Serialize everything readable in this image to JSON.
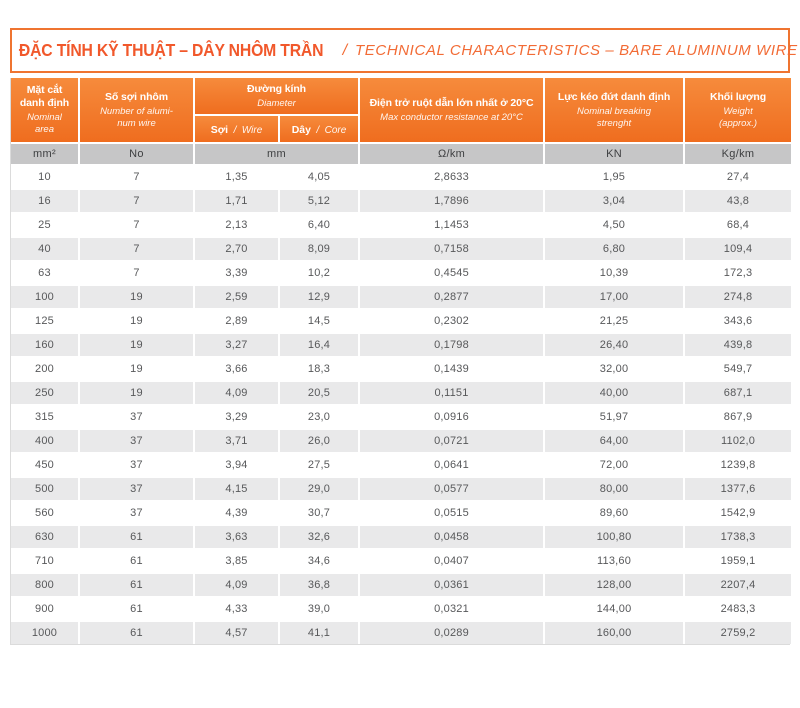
{
  "title": {
    "vi": "ĐẶC TÍNH KỸ THUẬT – DÂY NHÔM TRẦN",
    "separator": "/",
    "en": "TECHNICAL CHARACTERISTICS – BARE ALUMINUM WIRE"
  },
  "colors": {
    "accent_orange": "#EF7430",
    "header_gradient_top": "#F68B3C",
    "header_gradient_bottom": "#EF6D1F",
    "title_text": "#F1582B",
    "unit_row_bg": "#C6C6C7",
    "row_alt_bg": "#E9E9EA",
    "data_text": "#57585A"
  },
  "table": {
    "columns": [
      {
        "label": "Mặt cắt\ndanh định",
        "sublabel": "Nominal\narea",
        "unit": "mm²"
      },
      {
        "label": "Số sợi nhôm",
        "sublabel": "Number of alumi-\nnum wire",
        "unit": "No"
      },
      {
        "label": "Đường kính",
        "sublabel": "Diameter",
        "unit": "mm",
        "children": [
          {
            "vi": "Sợi",
            "sep": "/",
            "en": "Wire"
          },
          {
            "vi": "Dây",
            "sep": "/",
            "en": "Core"
          }
        ]
      },
      {
        "label": "Điện trở ruột dẫn lớn nhất ở 20°C",
        "sublabel": "Max conductor resistance at 20°C",
        "unit": "Ω/km"
      },
      {
        "label": "Lực kéo đứt danh định",
        "sublabel": "Nominal breaking\nstrenght",
        "unit": "KN"
      },
      {
        "label": "Khối lượng",
        "sublabel": "Weight\n(approx.)",
        "unit": "Kg/km"
      }
    ],
    "rows": [
      [
        "10",
        "7",
        "1,35",
        "4,05",
        "2,8633",
        "1,95",
        "27,4"
      ],
      [
        "16",
        "7",
        "1,71",
        "5,12",
        "1,7896",
        "3,04",
        "43,8"
      ],
      [
        "25",
        "7",
        "2,13",
        "6,40",
        "1,1453",
        "4,50",
        "68,4"
      ],
      [
        "40",
        "7",
        "2,70",
        "8,09",
        "0,7158",
        "6,80",
        "109,4"
      ],
      [
        "63",
        "7",
        "3,39",
        "10,2",
        "0,4545",
        "10,39",
        "172,3"
      ],
      [
        "100",
        "19",
        "2,59",
        "12,9",
        "0,2877",
        "17,00",
        "274,8"
      ],
      [
        "125",
        "19",
        "2,89",
        "14,5",
        "0,2302",
        "21,25",
        "343,6"
      ],
      [
        "160",
        "19",
        "3,27",
        "16,4",
        "0,1798",
        "26,40",
        "439,8"
      ],
      [
        "200",
        "19",
        "3,66",
        "18,3",
        "0,1439",
        "32,00",
        "549,7"
      ],
      [
        "250",
        "19",
        "4,09",
        "20,5",
        "0,1151",
        "40,00",
        "687,1"
      ],
      [
        "315",
        "37",
        "3,29",
        "23,0",
        "0,0916",
        "51,97",
        "867,9"
      ],
      [
        "400",
        "37",
        "3,71",
        "26,0",
        "0,0721",
        "64,00",
        "1102,0"
      ],
      [
        "450",
        "37",
        "3,94",
        "27,5",
        "0,0641",
        "72,00",
        "1239,8"
      ],
      [
        "500",
        "37",
        "4,15",
        "29,0",
        "0,0577",
        "80,00",
        "1377,6"
      ],
      [
        "560",
        "37",
        "4,39",
        "30,7",
        "0,0515",
        "89,60",
        "1542,9"
      ],
      [
        "630",
        "61",
        "3,63",
        "32,6",
        "0,0458",
        "100,80",
        "1738,3"
      ],
      [
        "710",
        "61",
        "3,85",
        "34,6",
        "0,0407",
        "113,60",
        "1959,1"
      ],
      [
        "800",
        "61",
        "4,09",
        "36,8",
        "0,0361",
        "128,00",
        "2207,4"
      ],
      [
        "900",
        "61",
        "4,33",
        "39,0",
        "0,0321",
        "144,00",
        "2483,3"
      ],
      [
        "1000",
        "61",
        "4,57",
        "41,1",
        "0,0289",
        "160,00",
        "2759,2"
      ]
    ]
  }
}
